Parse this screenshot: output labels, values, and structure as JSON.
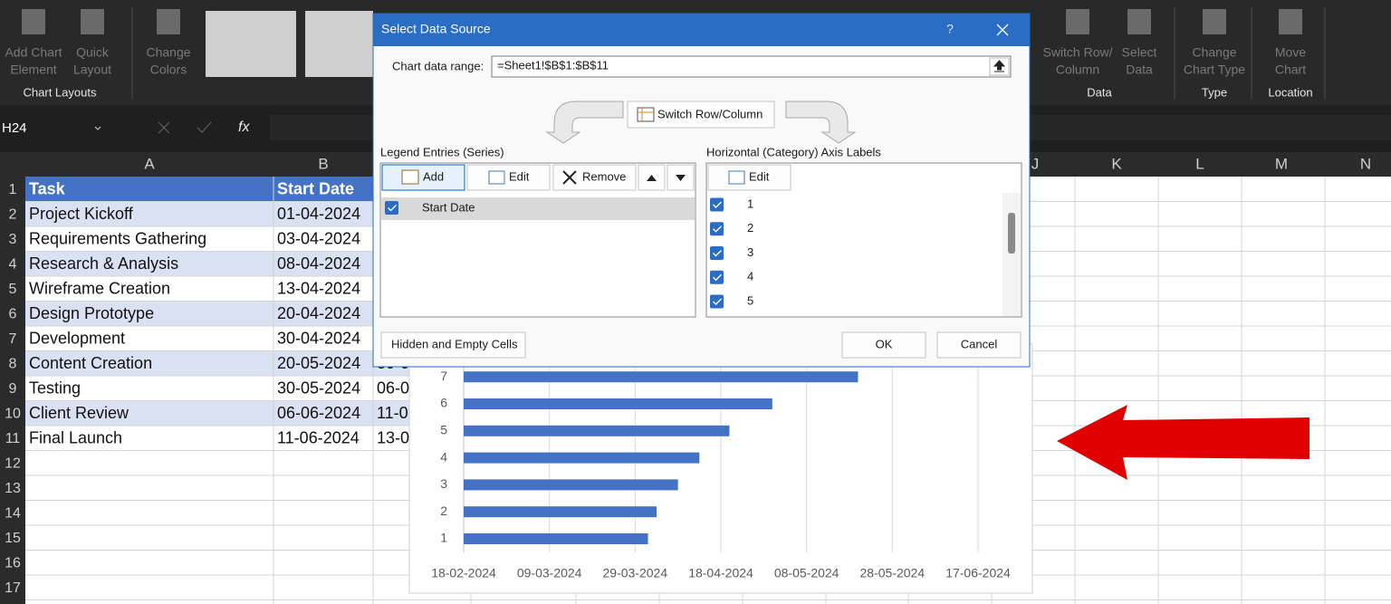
{
  "ribbon": {
    "buttons": [
      {
        "lines": [
          "Add Chart",
          "Element"
        ]
      },
      {
        "lines": [
          "Quick",
          "Layout"
        ]
      },
      {
        "lines": [
          "Change",
          "Colors"
        ]
      },
      {
        "lines": [
          "Switch Row/",
          "Column"
        ]
      },
      {
        "lines": [
          "Select",
          "Data"
        ]
      },
      {
        "lines": [
          "Change",
          "Chart Type"
        ]
      },
      {
        "lines": [
          "Move",
          "Chart"
        ]
      }
    ],
    "groups": [
      "Chart Layouts",
      "Data",
      "Type",
      "Location"
    ]
  },
  "formula_bar": {
    "name_box": "H24",
    "function_label": "fx"
  },
  "sheet": {
    "column_headers": [
      "A",
      "B",
      "J",
      "K",
      "L",
      "M",
      "N"
    ],
    "row_headers": [
      "1",
      "2",
      "3",
      "4",
      "5",
      "6",
      "7",
      "8",
      "9",
      "10",
      "11",
      "12",
      "13",
      "14",
      "15",
      "16",
      "17"
    ],
    "rows": [
      [
        "Task",
        "Start Date"
      ],
      [
        "Project Kickoff",
        "01-04-2024"
      ],
      [
        "Requirements Gathering",
        "03-04-2024"
      ],
      [
        "Research & Analysis",
        "08-04-2024"
      ],
      [
        "Wireframe Creation",
        "13-04-2024"
      ],
      [
        "Design Prototype",
        "20-04-2024"
      ],
      [
        "Development",
        "30-04-2024"
      ],
      [
        "Content Creation",
        "20-05-2024",
        "30-0"
      ],
      [
        "Testing",
        "30-05-2024",
        "06-0"
      ],
      [
        "Client Review",
        "06-06-2024",
        "11-0"
      ],
      [
        "Final Launch",
        "11-06-2024",
        "13-0"
      ]
    ]
  },
  "dialog": {
    "title": "Select Data Source",
    "help": "?",
    "range_label": "Chart data range:",
    "range_value": "=Sheet1!$B$1:$B$11",
    "switch_button": "Switch Row/Column",
    "legend": {
      "heading": "Legend Entries (Series)",
      "buttons": [
        "Add",
        "Edit",
        "Remove"
      ],
      "series": [
        "Start Date"
      ]
    },
    "axis_labels": {
      "heading": "Horizontal (Category) Axis Labels",
      "edit": "Edit",
      "items": [
        "1",
        "2",
        "3",
        "4",
        "5"
      ]
    },
    "hidden_cells_button": "Hidden and Empty Cells",
    "ok": "OK",
    "cancel": "Cancel"
  },
  "chart_data": {
    "type": "bar",
    "orientation": "horizontal",
    "categories": [
      "1",
      "2",
      "3",
      "4",
      "5",
      "6",
      "7"
    ],
    "values": [
      "2024-04-01",
      "2024-04-03",
      "2024-04-08",
      "2024-04-13",
      "2024-04-20",
      "2024-04-30",
      "2024-05-20"
    ],
    "color": "#4472c4",
    "xlim": [
      "2024-02-18",
      "2024-06-17"
    ],
    "xticks": [
      {
        "value": "2024-02-18",
        "label": "18-02-2024"
      },
      {
        "value": "2024-03-09",
        "label": "09-03-2024"
      },
      {
        "value": "2024-03-29",
        "label": "29-03-2024"
      },
      {
        "value": "2024-04-18",
        "label": "18-04-2024"
      },
      {
        "value": "2024-05-08",
        "label": "08-05-2024"
      },
      {
        "value": "2024-05-28",
        "label": "28-05-2024"
      },
      {
        "value": "2024-06-17",
        "label": "17-06-2024"
      }
    ],
    "grid": true
  }
}
